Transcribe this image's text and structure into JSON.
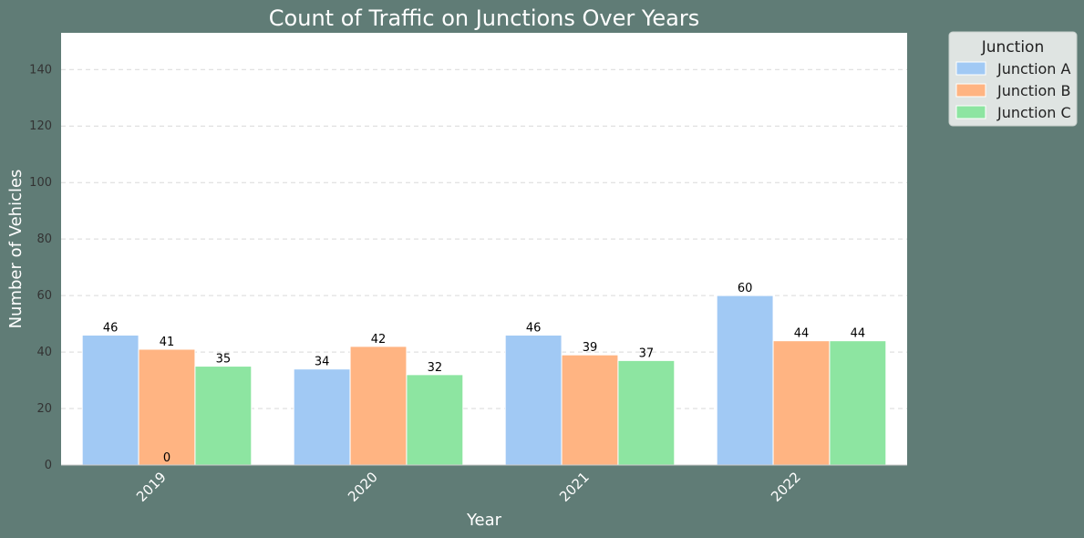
{
  "chart_data": {
    "type": "bar",
    "title": "Count of Traffic on Junctions Over Years",
    "xlabel": "Year",
    "ylabel": "Number of Vehicles",
    "categories": [
      "2019",
      "2020",
      "2021",
      "2022"
    ],
    "series": [
      {
        "name": "Junction A",
        "values": [
          46,
          34,
          46,
          60
        ],
        "color": "#a1c9f4"
      },
      {
        "name": "Junction B",
        "values": [
          41,
          42,
          39,
          44
        ],
        "color": "#ffb482"
      },
      {
        "name": "Junction C",
        "values": [
          35,
          32,
          37,
          44
        ],
        "color": "#8de5a1"
      }
    ],
    "extra_annotations": [
      {
        "text": "0",
        "category": "2019",
        "series": "Junction B",
        "y": 0
      }
    ],
    "ylim": [
      0,
      153
    ],
    "yticks": [
      0,
      20,
      40,
      60,
      80,
      100,
      120,
      140
    ],
    "grid": true,
    "legend": {
      "title": "Junction",
      "position": "outside-top-right"
    }
  }
}
